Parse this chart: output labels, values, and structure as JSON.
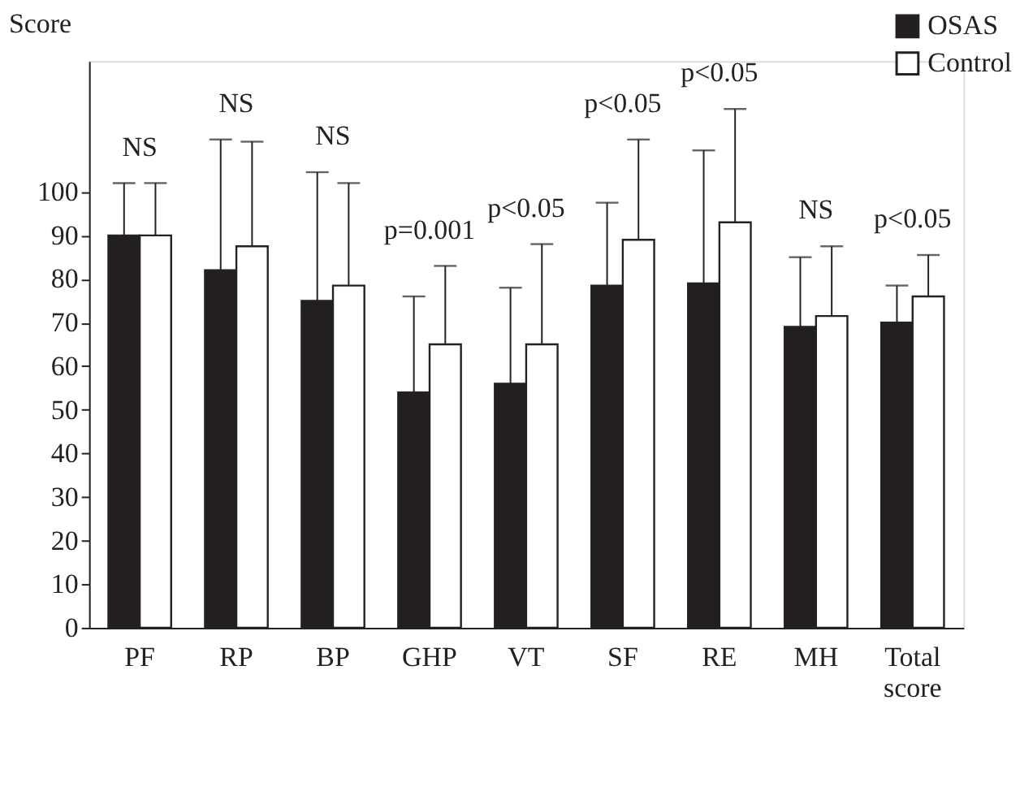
{
  "chart_data": {
    "type": "bar",
    "ylabel": "Score",
    "categories": [
      "PF",
      "RP",
      "BP",
      "GHP",
      "VT",
      "SF",
      "RE",
      "MH",
      "Total score"
    ],
    "series": [
      {
        "name": "OSAS",
        "color": "#231f20",
        "values": [
          90,
          82,
          75,
          54,
          56,
          78.5,
          79,
          69,
          70
        ],
        "errors": [
          12,
          30,
          29.5,
          22,
          22,
          19,
          30.5,
          16,
          8.5
        ]
      },
      {
        "name": "Control",
        "color": "#ffffff",
        "values": [
          90,
          87.5,
          78.5,
          65,
          65,
          89,
          93,
          71.5,
          76
        ],
        "errors": [
          12,
          24,
          23.5,
          18,
          23,
          23,
          26,
          16,
          9.5
        ]
      }
    ],
    "annotations": [
      "NS",
      "NS",
      "NS",
      "p=0.001",
      "p<0.05",
      "p<0.05",
      "p<0.05",
      "NS",
      "p<0.05"
    ],
    "ylim": [
      0,
      130
    ],
    "yticks": [
      0,
      10,
      20,
      30,
      40,
      50,
      60,
      70,
      80,
      90,
      100
    ],
    "grid": false,
    "legend": "top right"
  }
}
